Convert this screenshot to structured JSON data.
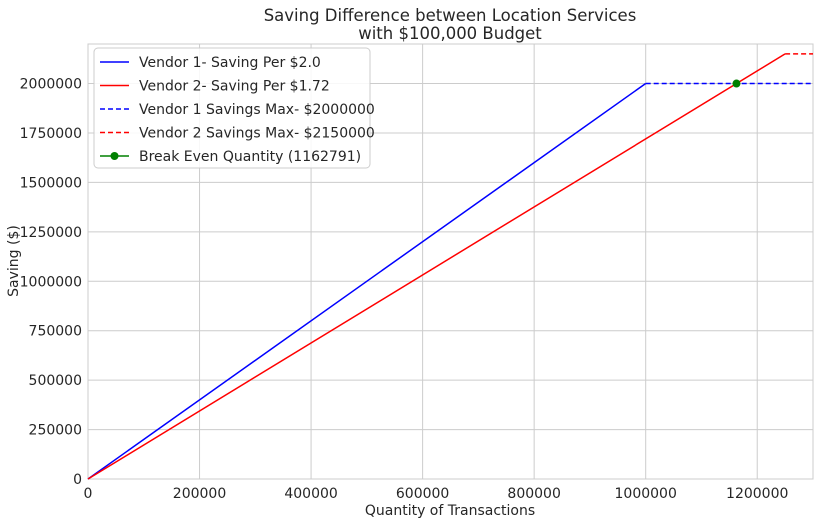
{
  "chart_data": {
    "type": "line",
    "title_lines": [
      "Saving Difference between Location Services",
      "with $100,000 Budget"
    ],
    "xlabel": "Quantity of Transactions",
    "ylabel": "Saving ($)",
    "xlim": [
      0,
      1300000
    ],
    "ylim": [
      0,
      2200000
    ],
    "xticks": [
      0,
      200000,
      400000,
      600000,
      800000,
      1000000,
      1200000
    ],
    "yticks": [
      0,
      250000,
      500000,
      750000,
      1000000,
      1250000,
      1500000,
      1750000,
      2000000
    ],
    "grid": true,
    "legend_position": "top-left",
    "series": [
      {
        "name": "Vendor 1- Saving Per $2.0",
        "style": "solid",
        "color": "#0000ff",
        "x": [
          0,
          1000000
        ],
        "y": [
          0,
          2000000
        ]
      },
      {
        "name": "Vendor 2- Saving Per $1.72",
        "style": "solid",
        "color": "#ff0000",
        "x": [
          0,
          1250000
        ],
        "y": [
          0,
          2150000
        ]
      },
      {
        "name": "Vendor 1 Savings Max- $2000000",
        "style": "dashed",
        "color": "#0000ff",
        "x": [
          1000000,
          1300000
        ],
        "y": [
          2000000,
          2000000
        ]
      },
      {
        "name": "Vendor 2 Savings Max- $2150000",
        "style": "dashed",
        "color": "#ff0000",
        "x": [
          1250000,
          1300000
        ],
        "y": [
          2150000,
          2150000
        ]
      },
      {
        "name": "Break Even Quantity (1162791)",
        "style": "marker",
        "color": "#008000",
        "x": [
          1162791
        ],
        "y": [
          2000000
        ]
      }
    ]
  }
}
